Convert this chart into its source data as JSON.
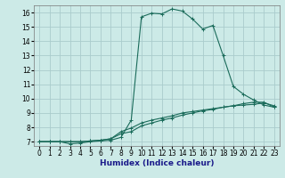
{
  "background_color": "#cceae7",
  "grid_color": "#aacccc",
  "line_color": "#1a6b5a",
  "xlabel": "Humidex (Indice chaleur)",
  "xlim": [
    -0.5,
    23.5
  ],
  "ylim": [
    6.7,
    16.5
  ],
  "xticks": [
    0,
    1,
    2,
    3,
    4,
    5,
    6,
    7,
    8,
    9,
    10,
    11,
    12,
    13,
    14,
    15,
    16,
    17,
    18,
    19,
    20,
    21,
    22,
    23
  ],
  "yticks": [
    7,
    8,
    9,
    10,
    11,
    12,
    13,
    14,
    15,
    16
  ],
  "curve1_x": [
    0,
    1,
    2,
    3,
    4,
    5,
    6,
    7,
    8,
    9,
    10,
    11,
    12,
    13,
    14,
    15,
    16,
    17,
    18,
    19,
    20,
    21,
    22,
    23
  ],
  "curve1_y": [
    7.0,
    7.0,
    7.0,
    6.85,
    6.9,
    7.0,
    7.05,
    7.1,
    7.3,
    8.5,
    15.7,
    15.95,
    15.9,
    16.25,
    16.1,
    15.55,
    14.85,
    15.1,
    13.0,
    10.85,
    10.3,
    9.9,
    9.55,
    9.4
  ],
  "curve2_x": [
    0,
    1,
    2,
    3,
    4,
    5,
    6,
    7,
    8,
    9,
    10,
    11,
    12,
    13,
    14,
    15,
    16,
    17,
    18,
    19,
    20,
    21,
    22,
    23
  ],
  "curve2_y": [
    7.0,
    7.0,
    7.0,
    7.0,
    7.0,
    7.05,
    7.1,
    7.2,
    7.55,
    7.7,
    8.1,
    8.3,
    8.5,
    8.65,
    8.85,
    9.0,
    9.15,
    9.25,
    9.4,
    9.5,
    9.65,
    9.75,
    9.75,
    9.4
  ],
  "curve3_x": [
    0,
    1,
    2,
    3,
    4,
    5,
    6,
    7,
    8,
    9,
    10,
    11,
    12,
    13,
    14,
    15,
    16,
    17,
    18,
    19,
    20,
    21,
    22,
    23
  ],
  "curve3_y": [
    7.0,
    7.0,
    7.0,
    7.0,
    7.0,
    7.05,
    7.1,
    7.2,
    7.7,
    7.95,
    8.3,
    8.5,
    8.65,
    8.8,
    9.0,
    9.1,
    9.2,
    9.3,
    9.4,
    9.5,
    9.55,
    9.6,
    9.7,
    9.5
  ]
}
